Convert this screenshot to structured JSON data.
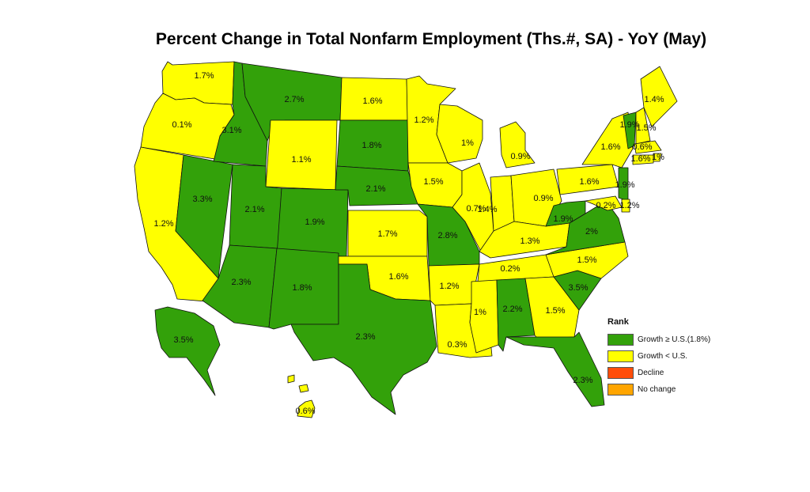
{
  "title": "Percent Change in Total Nonfarm Employment (Ths.#, SA) - YoY (May)",
  "colors": {
    "above": "#33a10a",
    "below": "#ffff00",
    "decline": "#ff4d0a",
    "nochange": "#ffa500"
  },
  "legend": {
    "title": "Rank",
    "items": [
      {
        "label": "Growth ≥ U.S.(1.8%)",
        "color": "#33a10a"
      },
      {
        "label": "Growth < U.S.",
        "color": "#ffff00"
      },
      {
        "label": "Decline",
        "color": "#ff4d0a"
      },
      {
        "label": "No change",
        "color": "#ffa500"
      }
    ]
  },
  "states": [
    {
      "state": "WA",
      "value": "1.7%",
      "rank": "below"
    },
    {
      "state": "OR",
      "value": "0.1%",
      "rank": "below"
    },
    {
      "state": "CA",
      "value": "1.2%",
      "rank": "below"
    },
    {
      "state": "NV",
      "value": "3.3%",
      "rank": "above"
    },
    {
      "state": "ID",
      "value": "3.1%",
      "rank": "above"
    },
    {
      "state": "MT",
      "value": "2.7%",
      "rank": "above"
    },
    {
      "state": "WY",
      "value": "1.1%",
      "rank": "below"
    },
    {
      "state": "UT",
      "value": "2.1%",
      "rank": "above"
    },
    {
      "state": "CO",
      "value": "1.9%",
      "rank": "above"
    },
    {
      "state": "AZ",
      "value": "2.3%",
      "rank": "above"
    },
    {
      "state": "NM",
      "value": "1.8%",
      "rank": "above"
    },
    {
      "state": "ND",
      "value": "1.6%",
      "rank": "below"
    },
    {
      "state": "SD",
      "value": "1.8%",
      "rank": "above"
    },
    {
      "state": "NE",
      "value": "2.1%",
      "rank": "above"
    },
    {
      "state": "KS",
      "value": "1.7%",
      "rank": "below"
    },
    {
      "state": "OK",
      "value": "1.6%",
      "rank": "below"
    },
    {
      "state": "TX",
      "value": "2.3%",
      "rank": "above"
    },
    {
      "state": "MN",
      "value": "1.2%",
      "rank": "below"
    },
    {
      "state": "IA",
      "value": "1.5%",
      "rank": "below"
    },
    {
      "state": "MO",
      "value": "2.8%",
      "rank": "above"
    },
    {
      "state": "AR",
      "value": "1.2%",
      "rank": "below"
    },
    {
      "state": "LA",
      "value": "0.3%",
      "rank": "below"
    },
    {
      "state": "WI",
      "value": "1%",
      "rank": "below"
    },
    {
      "state": "IL",
      "value": "0.7%",
      "rank": "below"
    },
    {
      "state": "MI",
      "value": "0.9%",
      "rank": "below"
    },
    {
      "state": "IN",
      "value": "1.4%",
      "rank": "below"
    },
    {
      "state": "OH",
      "value": "0.9%",
      "rank": "below"
    },
    {
      "state": "KY",
      "value": "1.3%",
      "rank": "below"
    },
    {
      "state": "TN",
      "value": "0.2%",
      "rank": "below"
    },
    {
      "state": "MS",
      "value": "1%",
      "rank": "below"
    },
    {
      "state": "AL",
      "value": "2.2%",
      "rank": "above"
    },
    {
      "state": "GA",
      "value": "1.5%",
      "rank": "below"
    },
    {
      "state": "FL",
      "value": "2.3%",
      "rank": "above"
    },
    {
      "state": "SC",
      "value": "3.5%",
      "rank": "above"
    },
    {
      "state": "NC",
      "value": "1.5%",
      "rank": "below"
    },
    {
      "state": "VA",
      "value": "2%",
      "rank": "above"
    },
    {
      "state": "WV",
      "value": "1.9%",
      "rank": "above"
    },
    {
      "state": "PA",
      "value": "1.6%",
      "rank": "below"
    },
    {
      "state": "NY",
      "value": "1.6%",
      "rank": "below"
    },
    {
      "state": "VT",
      "value": "1.9%",
      "rank": "above"
    },
    {
      "state": "NH",
      "value": "1.5%",
      "rank": "below"
    },
    {
      "state": "ME",
      "value": "1.4%",
      "rank": "below"
    },
    {
      "state": "MA",
      "value": "0.6%",
      "rank": "below"
    },
    {
      "state": "RI",
      "value": "1%",
      "rank": "below"
    },
    {
      "state": "CT",
      "value": "1.6%",
      "rank": "below"
    },
    {
      "state": "NJ",
      "value": "1.9%",
      "rank": "above"
    },
    {
      "state": "DE",
      "value": "1.2%",
      "rank": "below"
    },
    {
      "state": "MD",
      "value": "0.2%",
      "rank": "below"
    },
    {
      "state": "AK",
      "value": "3.5%",
      "rank": "above"
    },
    {
      "state": "HI",
      "value": "0.6%",
      "rank": "below"
    }
  ]
}
